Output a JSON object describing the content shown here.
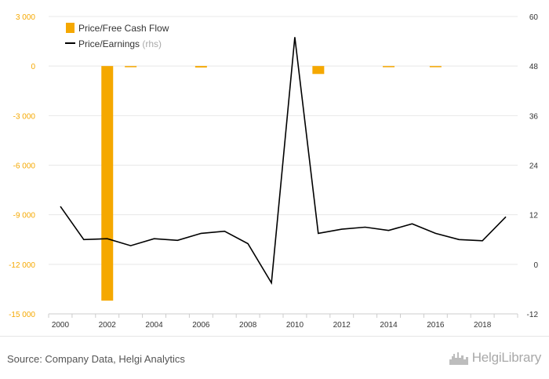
{
  "chart_data": {
    "type": "bar+line",
    "x": [
      2000,
      2001,
      2002,
      2003,
      2004,
      2005,
      2006,
      2007,
      2008,
      2009,
      2010,
      2011,
      2012,
      2013,
      2014,
      2015,
      2016,
      2017,
      2018,
      2019
    ],
    "series": [
      {
        "name": "Price/Free Cash Flow",
        "type": "bar",
        "axis": "left",
        "color": "#f5a800",
        "values": [
          null,
          null,
          -14200,
          -60,
          null,
          null,
          -90,
          null,
          null,
          null,
          null,
          -480,
          null,
          null,
          -40,
          null,
          -50,
          null,
          null,
          null
        ]
      },
      {
        "name": "Price/Earnings",
        "type": "line",
        "axis": "right",
        "color": "#000000",
        "values": [
          14,
          6,
          6.2,
          4.5,
          6.2,
          5.8,
          7.5,
          8,
          5,
          -4.5,
          55,
          7.5,
          8.5,
          9,
          8.2,
          9.8,
          7.5,
          6,
          5.7,
          11.5
        ]
      }
    ],
    "legend": [
      {
        "label": "Price/Free Cash Flow",
        "suffix": ""
      },
      {
        "label": "Price/Earnings",
        "suffix": " (rhs)"
      }
    ],
    "y_left": {
      "min": -15000,
      "max": 3000,
      "ticks": [
        3000,
        0,
        -3000,
        -6000,
        -9000,
        -12000,
        -15000
      ],
      "tick_labels": [
        "3 000",
        "0",
        "-3 000",
        "-6 000",
        "-9 000",
        "-12 000",
        "-15 000"
      ]
    },
    "y_right": {
      "min": -12,
      "max": 60,
      "ticks": [
        60,
        48,
        36,
        24,
        12,
        0,
        -12
      ],
      "tick_labels": [
        "60",
        "48",
        "36",
        "24",
        "12",
        "0",
        "-12"
      ]
    },
    "x_tick_labels": [
      "2000",
      "2002",
      "2004",
      "2006",
      "2008",
      "2010",
      "2012",
      "2014",
      "2016",
      "2018"
    ],
    "left_axis_color": "#f5a800",
    "grid": true,
    "legend_position": "top-left"
  },
  "footer": {
    "source": "Source: Company Data, Helgi Analytics",
    "brand": "HelgiLibrary"
  }
}
